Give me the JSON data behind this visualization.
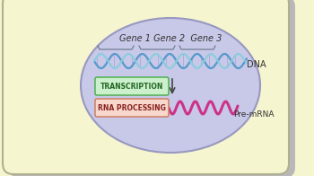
{
  "bg_color": "#f5f5d0",
  "cell_fill": "#f5f5d0",
  "cell_edge": "#b0b090",
  "shadow_color": "#b8b8b8",
  "nucleus_fill": "#c8c8e8",
  "nucleus_edge": "#9898c0",
  "gene_text": "Gene 1 Gene 2  Gene 3",
  "dna_label": "DNA",
  "transcription_label": "TRANSCRIPTION",
  "rna_label": "RNA PROCESSING",
  "premrna_label": "Pre-mRNA",
  "transcription_fill": "#ccf0cc",
  "transcription_edge": "#44aa44",
  "rna_fill": "#f8d8cc",
  "rna_edge": "#cc7755",
  "dna_blue": "#5599cc",
  "dna_cyan": "#88ccdd",
  "mrna_color": "#cc3388",
  "arrow_color": "#444444",
  "text_color": "#333333",
  "bracket_color": "#667788"
}
